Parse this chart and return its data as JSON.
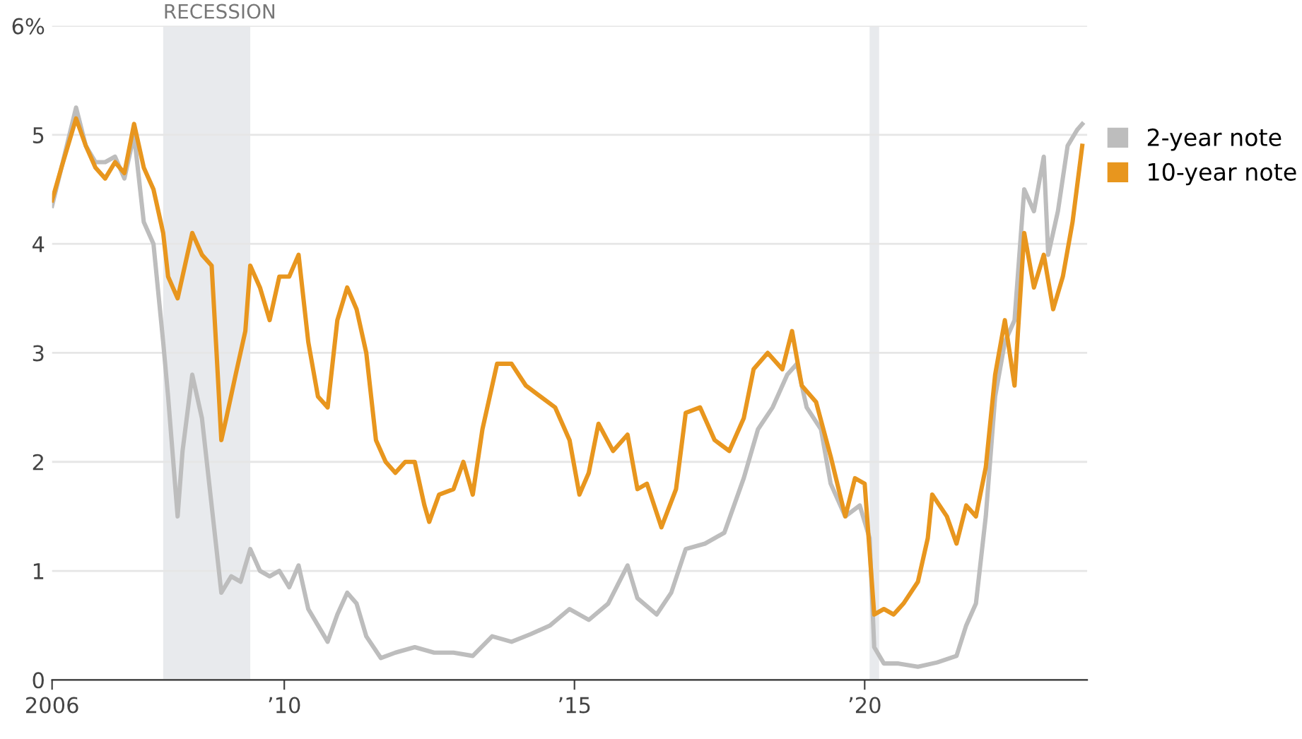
{
  "chart_data": {
    "type": "line",
    "legend": "right",
    "grid": "y",
    "xlim": [
      "2006-01-01",
      "2023-11-01"
    ],
    "xticks": [
      {
        "value": "2006-01-01",
        "label": "2006"
      },
      {
        "value": "2010-01-01",
        "label": "’10"
      },
      {
        "value": "2015-01-01",
        "label": "’15"
      },
      {
        "value": "2020-01-01",
        "label": "’20"
      }
    ],
    "ylim": [
      0,
      6
    ],
    "yticks": [
      0,
      1,
      2,
      3,
      4,
      5,
      {
        "value": 6,
        "label": "6%"
      }
    ],
    "bands": [
      {
        "axis": "x",
        "from": "2007-12",
        "to": "2009-06",
        "label": "RECESSION",
        "color": "#e8eaed"
      },
      {
        "axis": "x",
        "from": "2020-02",
        "to": "2020-04",
        "label": null,
        "color": "#e8eaed"
      }
    ],
    "series": [
      {
        "name": "2-year note",
        "color": "#bdbdbd",
        "x": [
          "2006-01",
          "2006-03",
          "2006-06",
          "2006-08",
          "2006-10",
          "2006-12",
          "2007-02",
          "2007-04",
          "2007-06",
          "2007-08",
          "2007-10",
          "2007-12",
          "2008-01",
          "2008-03",
          "2008-04",
          "2008-06",
          "2008-08",
          "2008-10",
          "2008-12",
          "2009-02",
          "2009-04",
          "2009-06",
          "2009-08",
          "2009-10",
          "2009-12",
          "2010-02",
          "2010-04",
          "2010-06",
          "2010-08",
          "2010-10",
          "2010-12",
          "2011-02",
          "2011-04",
          "2011-06",
          "2011-09",
          "2011-12",
          "2012-04",
          "2012-08",
          "2012-12",
          "2013-04",
          "2013-08",
          "2013-12",
          "2014-04",
          "2014-08",
          "2014-12",
          "2015-04",
          "2015-08",
          "2015-12",
          "2016-02",
          "2016-06",
          "2016-09",
          "2016-12",
          "2017-04",
          "2017-08",
          "2017-12",
          "2018-03",
          "2018-06",
          "2018-09",
          "2018-11",
          "2019-01",
          "2019-04",
          "2019-06",
          "2019-09",
          "2019-12",
          "2020-02",
          "2020-03",
          "2020-05",
          "2020-08",
          "2020-12",
          "2021-04",
          "2021-08",
          "2021-10",
          "2021-12",
          "2022-02",
          "2022-04",
          "2022-06",
          "2022-08",
          "2022-10",
          "2022-12",
          "2023-02",
          "2023-03",
          "2023-05",
          "2023-07",
          "2023-09",
          "2023-10"
        ],
        "values": [
          4.35,
          4.7,
          5.25,
          4.9,
          4.75,
          4.75,
          4.8,
          4.6,
          5.0,
          4.2,
          4.0,
          3.1,
          2.6,
          1.5,
          2.1,
          2.8,
          2.4,
          1.6,
          0.8,
          0.95,
          0.9,
          1.2,
          1.0,
          0.95,
          1.0,
          0.85,
          1.05,
          0.65,
          0.5,
          0.35,
          0.6,
          0.8,
          0.7,
          0.4,
          0.2,
          0.25,
          0.3,
          0.25,
          0.25,
          0.22,
          0.4,
          0.35,
          0.42,
          0.5,
          0.65,
          0.55,
          0.7,
          1.05,
          0.75,
          0.6,
          0.8,
          1.2,
          1.25,
          1.35,
          1.85,
          2.3,
          2.5,
          2.8,
          2.9,
          2.5,
          2.3,
          1.8,
          1.5,
          1.6,
          1.3,
          0.3,
          0.15,
          0.15,
          0.12,
          0.16,
          0.22,
          0.5,
          0.7,
          1.5,
          2.6,
          3.1,
          3.3,
          4.5,
          4.3,
          4.8,
          3.9,
          4.3,
          4.9,
          5.05,
          5.1
        ]
      },
      {
        "name": "10-year note",
        "color": "#e8961e",
        "x": [
          "2006-01",
          "2006-03",
          "2006-06",
          "2006-08",
          "2006-10",
          "2006-12",
          "2007-02",
          "2007-04",
          "2007-06",
          "2007-08",
          "2007-10",
          "2007-12",
          "2008-01",
          "2008-03",
          "2008-05",
          "2008-06",
          "2008-08",
          "2008-10",
          "2008-11",
          "2008-12",
          "2009-01",
          "2009-03",
          "2009-05",
          "2009-06",
          "2009-08",
          "2009-10",
          "2009-12",
          "2010-02",
          "2010-04",
          "2010-06",
          "2010-08",
          "2010-10",
          "2010-12",
          "2011-02",
          "2011-04",
          "2011-06",
          "2011-08",
          "2011-10",
          "2011-12",
          "2012-02",
          "2012-04",
          "2012-06",
          "2012-07",
          "2012-09",
          "2012-12",
          "2013-02",
          "2013-04",
          "2013-06",
          "2013-09",
          "2013-12",
          "2014-03",
          "2014-06",
          "2014-09",
          "2014-12",
          "2015-02",
          "2015-04",
          "2015-06",
          "2015-09",
          "2015-12",
          "2016-02",
          "2016-04",
          "2016-07",
          "2016-10",
          "2016-12",
          "2017-03",
          "2017-06",
          "2017-09",
          "2017-12",
          "2018-02",
          "2018-05",
          "2018-08",
          "2018-10",
          "2018-12",
          "2019-03",
          "2019-06",
          "2019-09",
          "2019-11",
          "2020-01",
          "2020-03",
          "2020-05",
          "2020-07",
          "2020-09",
          "2020-12",
          "2021-02",
          "2021-03",
          "2021-06",
          "2021-08",
          "2021-10",
          "2021-12",
          "2022-02",
          "2022-04",
          "2022-06",
          "2022-08",
          "2022-10",
          "2022-12",
          "2023-02",
          "2023-04",
          "2023-06",
          "2023-08",
          "2023-10"
        ],
        "values": [
          4.4,
          4.7,
          5.15,
          4.9,
          4.7,
          4.6,
          4.75,
          4.65,
          5.1,
          4.7,
          4.5,
          4.1,
          3.7,
          3.5,
          3.9,
          4.1,
          3.9,
          3.8,
          3.0,
          2.2,
          2.4,
          2.8,
          3.2,
          3.8,
          3.6,
          3.3,
          3.7,
          3.7,
          3.9,
          3.1,
          2.6,
          2.5,
          3.3,
          3.6,
          3.4,
          3.0,
          2.2,
          2.0,
          1.9,
          2.0,
          2.0,
          1.6,
          1.45,
          1.7,
          1.75,
          2.0,
          1.7,
          2.3,
          2.9,
          2.9,
          2.7,
          2.6,
          2.5,
          2.2,
          1.7,
          1.9,
          2.35,
          2.1,
          2.25,
          1.75,
          1.8,
          1.4,
          1.75,
          2.45,
          2.5,
          2.2,
          2.1,
          2.4,
          2.85,
          3.0,
          2.85,
          3.2,
          2.7,
          2.55,
          2.05,
          1.5,
          1.85,
          1.8,
          0.6,
          0.65,
          0.6,
          0.7,
          0.9,
          1.3,
          1.7,
          1.5,
          1.25,
          1.6,
          1.5,
          1.95,
          2.8,
          3.3,
          2.7,
          4.1,
          3.6,
          3.9,
          3.4,
          3.7,
          4.2,
          4.9
        ]
      }
    ]
  }
}
